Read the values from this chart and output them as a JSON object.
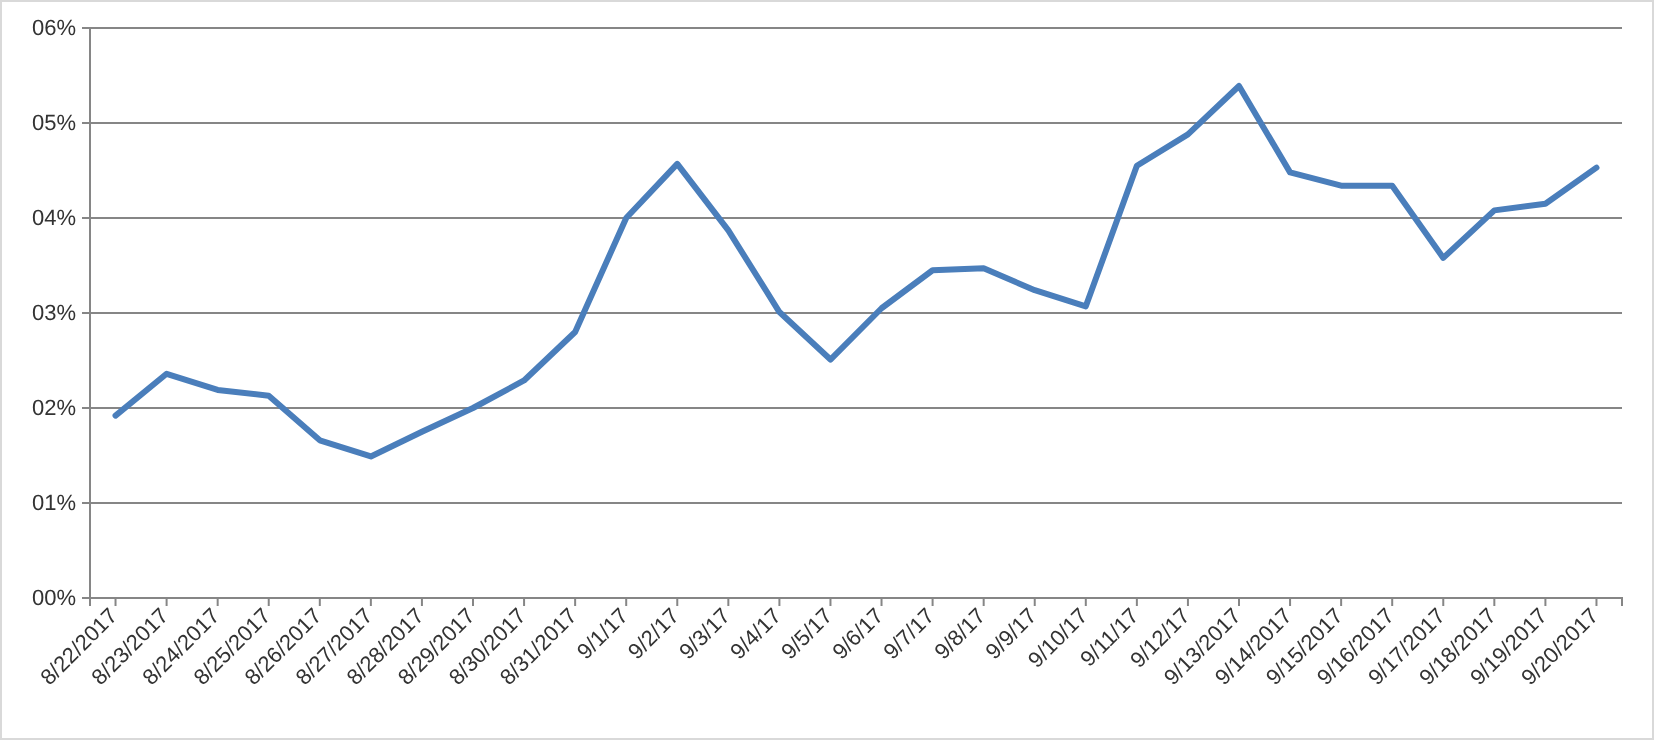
{
  "chart_data": {
    "type": "line",
    "categories": [
      "8/22/2017",
      "8/23/2017",
      "8/24/2017",
      "8/25/2017",
      "8/26/2017",
      "8/27/2017",
      "8/28/2017",
      "8/29/2017",
      "8/30/2017",
      "8/31/2017",
      "9/1/17",
      "9/2/17",
      "9/3/17",
      "9/4/17",
      "9/5/17",
      "9/6/17",
      "9/7/17",
      "9/8/17",
      "9/9/17",
      "9/10/17",
      "9/11/17",
      "9/12/17",
      "9/13/2017",
      "9/14/2017",
      "9/15/2017",
      "9/16/2017",
      "9/17/2017",
      "9/18/2017",
      "9/19/2017",
      "9/20/2017"
    ],
    "series": [
      {
        "color": "#4a7ebb",
        "values": [
          1.92,
          2.36,
          2.19,
          2.13,
          1.66,
          1.49,
          1.75,
          2.0,
          2.29,
          2.8,
          4.0,
          4.57,
          3.87,
          3.01,
          2.51,
          3.05,
          3.45,
          3.47,
          3.24,
          3.07,
          4.55,
          4.88,
          5.39,
          4.48,
          4.34,
          4.34,
          3.58,
          4.08,
          4.15,
          4.53
        ]
      }
    ],
    "ylim": [
      0,
      6
    ],
    "yticks": [
      {
        "value": 0,
        "label": "00%"
      },
      {
        "value": 1,
        "label": "01%"
      },
      {
        "value": 2,
        "label": "02%"
      },
      {
        "value": 3,
        "label": "03%"
      },
      {
        "value": 4,
        "label": "04%"
      },
      {
        "value": 5,
        "label": "05%"
      },
      {
        "value": 6,
        "label": "06%"
      }
    ],
    "grid": "y",
    "marker": "none",
    "line_style": "solid"
  }
}
